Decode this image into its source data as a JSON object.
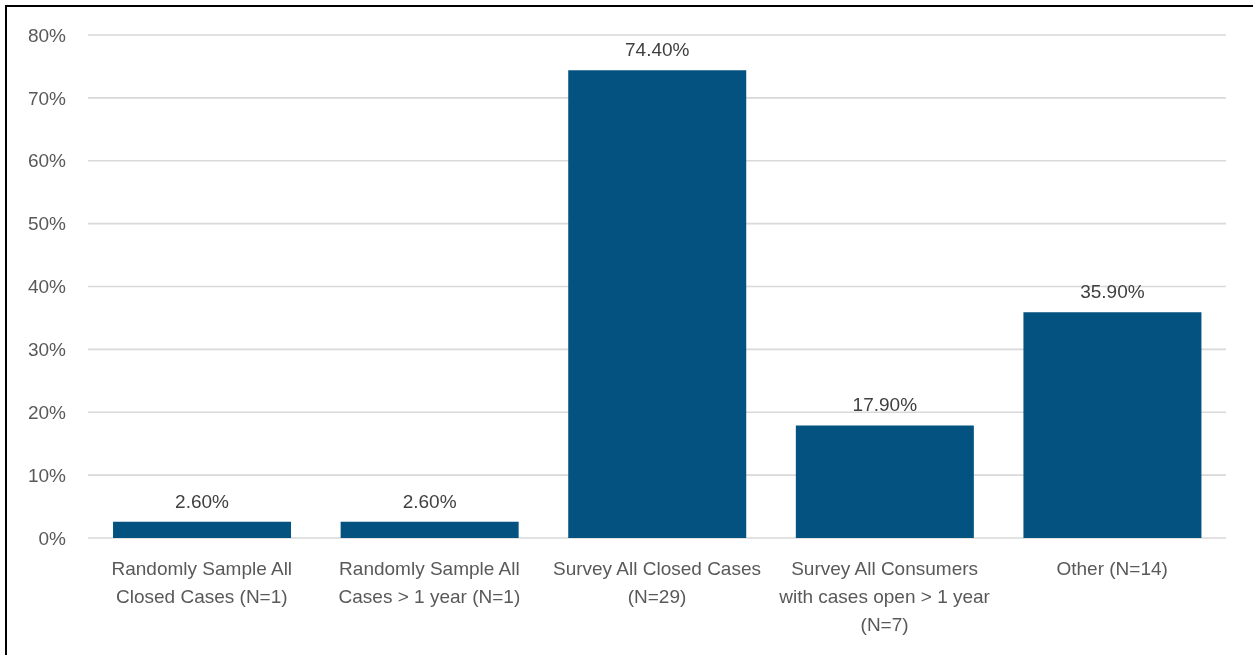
{
  "chart_data": {
    "type": "bar",
    "categories": [
      "Randomly Sample All Closed Cases (N=1)",
      "Randomly Sample All Cases > 1 year (N=1)",
      "Survey All Closed Cases (N=29)",
      "Survey All Consumers with cases open > 1 year (N=7)",
      "Other (N=14)"
    ],
    "values": [
      2.6,
      2.6,
      74.4,
      17.9,
      35.9
    ],
    "color": "#03527f",
    "ylim": [
      0,
      80
    ],
    "yticks": [
      {
        "value": 0,
        "label": "0%"
      },
      {
        "value": 10,
        "label": "10%"
      },
      {
        "value": 20,
        "label": "20%"
      },
      {
        "value": 30,
        "label": "30%"
      },
      {
        "value": 40,
        "label": "40%"
      },
      {
        "value": 50,
        "label": "50%"
      },
      {
        "value": 60,
        "label": "60%"
      },
      {
        "value": 70,
        "label": "70%"
      },
      {
        "value": 80,
        "label": "80%"
      }
    ],
    "grid": "y",
    "value_labels": [
      "2.60%",
      "2.60%",
      "74.40%",
      "17.90%",
      "35.90%"
    ]
  }
}
